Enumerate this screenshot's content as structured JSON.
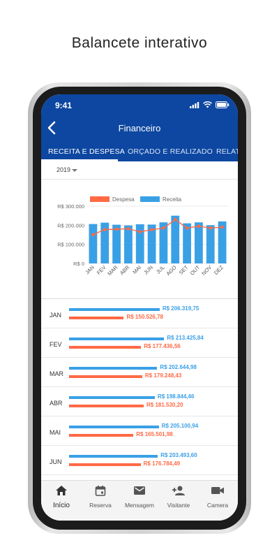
{
  "promo": {
    "title": "Balancete interativo"
  },
  "status": {
    "time": "9:41"
  },
  "appbar": {
    "title": "Financeiro"
  },
  "tabs": [
    {
      "label": "RECEITA E DESPESA"
    },
    {
      "label": "ORÇADO E REALIZADO"
    },
    {
      "label": "RELATÓRIO"
    }
  ],
  "filter": {
    "year": "2019"
  },
  "colors": {
    "brand": "#0d47a1",
    "receita": "#3aa0e6",
    "despesa": "#ff6a45"
  },
  "chart_data": {
    "type": "bar",
    "categories": [
      "JAN",
      "FEV",
      "MAR",
      "ABR",
      "MAI",
      "JUN",
      "JUL",
      "AGO",
      "SET",
      "OUT",
      "NOV",
      "DEZ"
    ],
    "series": [
      {
        "name": "Receita",
        "type": "bar",
        "values": [
          206319.75,
          213425.84,
          202644.98,
          198844.46,
          205100.94,
          203493.6,
          215000,
          250000,
          210000,
          215000,
          200000,
          220000
        ]
      },
      {
        "name": "Despesa",
        "type": "line",
        "values": [
          150526.78,
          177436.56,
          179248.43,
          181530.2,
          165501.98,
          176784.49,
          185000,
          230000,
          185000,
          195000,
          185000,
          190000
        ]
      }
    ],
    "yticks": [
      "R$ 300.000",
      "R$ 200.000",
      "R$ 100.000",
      "R$ 0"
    ],
    "ylim": [
      0,
      300000
    ],
    "legend": "top",
    "grid": true
  },
  "list": [
    {
      "month": "JAN",
      "receita": "R$ 206.319,75",
      "despesa": "R$ 150.526,78",
      "receita_value": 206319.75,
      "despesa_value": 150526.78
    },
    {
      "month": "FEV",
      "receita": "R$ 213.425,84",
      "despesa": "R$ 177.436,56",
      "receita_value": 213425.84,
      "despesa_value": 177436.56
    },
    {
      "month": "MAR",
      "receita": "R$ 202.644,98",
      "despesa": "R$ 179.248,43",
      "receita_value": 202644.98,
      "despesa_value": 179248.43
    },
    {
      "month": "ABR",
      "receita": "R$ 198.844,46",
      "despesa": "R$ 181.530,20",
      "receita_value": 198844.46,
      "despesa_value": 181530.2
    },
    {
      "month": "MAI",
      "receita": "R$ 205.100,94",
      "despesa": "R$ 165.501,98",
      "receita_value": 205100.94,
      "despesa_value": 165501.98
    },
    {
      "month": "JUN",
      "receita": "R$ 203.493,60",
      "despesa": "R$ 176.784,49",
      "receita_value": 203493.6,
      "despesa_value": 176784.49
    }
  ],
  "nav": [
    {
      "label": "Início",
      "icon": "home-icon"
    },
    {
      "label": "Reserva",
      "icon": "calendar-icon"
    },
    {
      "label": "Mensagem",
      "icon": "mail-icon"
    },
    {
      "label": "Visitante",
      "icon": "add-person-icon"
    },
    {
      "label": "Camera",
      "icon": "video-camera-icon"
    }
  ]
}
